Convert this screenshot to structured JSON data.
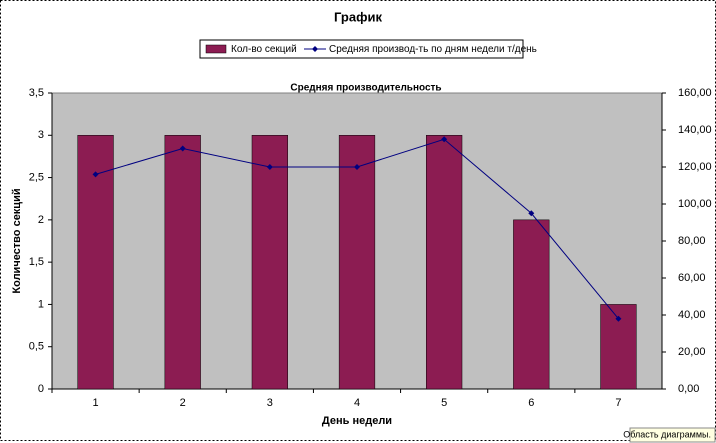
{
  "chart_data": {
    "type": "bar_line",
    "title": "График",
    "plot_title": "Средняя производительность",
    "x_label": "День недели",
    "y_label": "Количество секций",
    "categories": [
      "1",
      "2",
      "3",
      "4",
      "5",
      "6",
      "7"
    ],
    "series": [
      {
        "name": "Кол-во секций",
        "type": "bar",
        "color": "#8c1c52",
        "values": [
          3,
          3,
          3,
          3,
          3,
          2,
          1
        ]
      },
      {
        "name": "Средняя производ-ть по дням недели т/день",
        "type": "line",
        "axis": "y2",
        "color": "#000080",
        "values": [
          116,
          130,
          120,
          120,
          135,
          95,
          38
        ]
      }
    ],
    "ylim": [
      0,
      3.5
    ],
    "yticks": [
      0,
      {
        "value": 0.5,
        "label": "0,5"
      },
      1,
      {
        "value": 1.5,
        "label": "1,5"
      },
      2,
      {
        "value": 2.5,
        "label": "2,5"
      },
      3,
      {
        "value": 3.5,
        "label": "3,5"
      }
    ],
    "y2lim": [
      0,
      160
    ],
    "y2ticks": [
      {
        "value": 0,
        "label": "0,00"
      },
      {
        "value": 20,
        "label": "20,00"
      },
      {
        "value": 40,
        "label": "40,00"
      },
      {
        "value": 60,
        "label": "60,00"
      },
      {
        "value": 80,
        "label": "80,00"
      },
      {
        "value": 100,
        "label": "100,00"
      },
      {
        "value": 120,
        "label": "120,00"
      },
      {
        "value": 140,
        "label": "140,00"
      },
      {
        "value": 160,
        "label": "160,00"
      }
    ],
    "grid": false,
    "plot_background": "#c0c0c0",
    "legend": "top"
  },
  "tooltip": "Область диаграммы."
}
